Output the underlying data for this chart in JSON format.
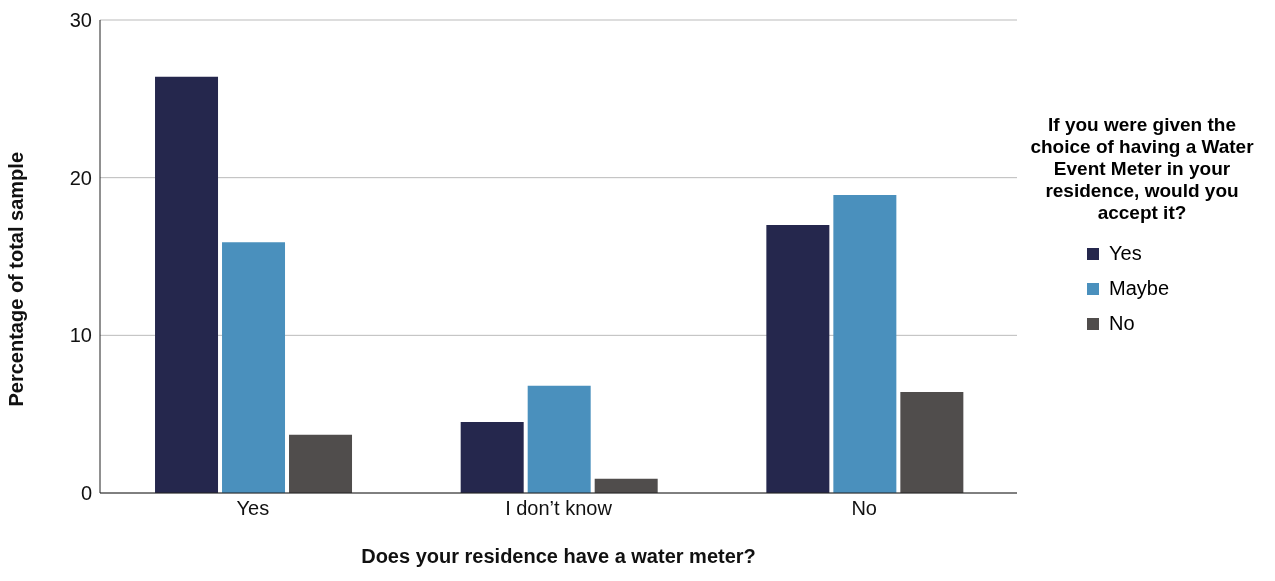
{
  "chart_data": {
    "type": "bar",
    "xlabel": "Does your residence have a water meter?",
    "ylabel": "Percentage of total sample",
    "legend_title": "If you were given the choice of having a Water Event Meter in your residence, would you accept it?",
    "categories": [
      "Yes",
      "I don’t know",
      "No"
    ],
    "series": [
      {
        "name": "Yes",
        "color": "#25274d",
        "values": [
          26.4,
          4.5,
          17.0
        ]
      },
      {
        "name": "Maybe",
        "color": "#4a90bd",
        "values": [
          15.9,
          6.8,
          18.9
        ]
      },
      {
        "name": "No",
        "color": "#504d4c",
        "values": [
          3.7,
          0.9,
          6.4
        ]
      }
    ],
    "ylim": [
      0,
      30
    ],
    "yticks": [
      0,
      10,
      20,
      30
    ],
    "grid": "y",
    "legend": "right"
  }
}
